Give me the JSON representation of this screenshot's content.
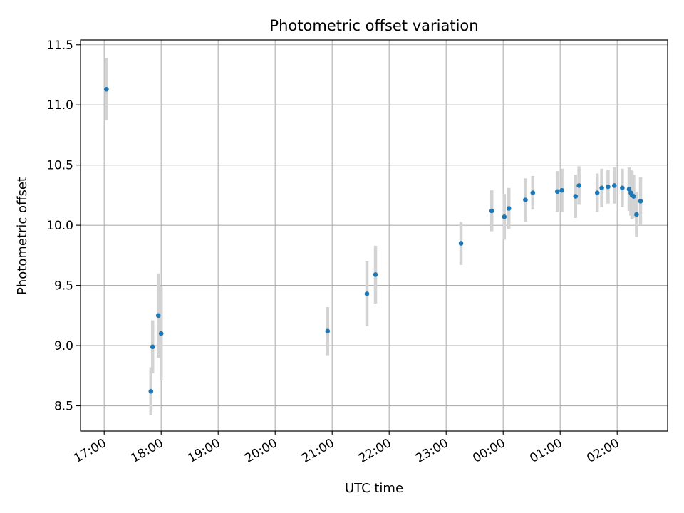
{
  "chart_data": {
    "type": "scatter",
    "title": "Photometric offset variation",
    "xlabel": "UTC time",
    "ylabel": "Photometric offset",
    "x_unit": "hours (17:00 to 02:00 next day)",
    "xlim": [
      16.585,
      26.885
    ],
    "ylim": [
      8.29,
      11.54
    ],
    "x_ticks": [
      17,
      18,
      19,
      20,
      21,
      22,
      23,
      24,
      25,
      26
    ],
    "x_tick_labels": [
      "17:00",
      "18:00",
      "19:00",
      "20:00",
      "21:00",
      "22:00",
      "23:00",
      "00:00",
      "01:00",
      "02:00"
    ],
    "y_ticks": [
      8.5,
      9.0,
      9.5,
      10.0,
      10.5,
      11.0,
      11.5
    ],
    "y_tick_labels": [
      "8.5",
      "9.0",
      "9.5",
      "10.0",
      "10.5",
      "11.0",
      "11.5"
    ],
    "grid": true,
    "marker_color": "#1f77b4",
    "errorbar_color": "#d3d3d3",
    "points": [
      {
        "x": 17.04,
        "y": 11.13,
        "err": 0.26
      },
      {
        "x": 17.82,
        "y": 8.62,
        "err": 0.2
      },
      {
        "x": 17.85,
        "y": 8.99,
        "err": 0.22
      },
      {
        "x": 17.95,
        "y": 9.25,
        "err": 0.35
      },
      {
        "x": 18.0,
        "y": 9.1,
        "err": 0.39
      },
      {
        "x": 20.92,
        "y": 9.12,
        "err": 0.2
      },
      {
        "x": 21.61,
        "y": 9.43,
        "err": 0.27
      },
      {
        "x": 21.76,
        "y": 9.59,
        "err": 0.24
      },
      {
        "x": 23.26,
        "y": 9.85,
        "err": 0.18
      },
      {
        "x": 23.8,
        "y": 10.12,
        "err": 0.17
      },
      {
        "x": 24.02,
        "y": 10.07,
        "err": 0.19
      },
      {
        "x": 24.1,
        "y": 10.14,
        "err": 0.17
      },
      {
        "x": 24.39,
        "y": 10.21,
        "err": 0.18
      },
      {
        "x": 24.52,
        "y": 10.27,
        "err": 0.14
      },
      {
        "x": 24.95,
        "y": 10.28,
        "err": 0.17
      },
      {
        "x": 25.03,
        "y": 10.29,
        "err": 0.18
      },
      {
        "x": 25.27,
        "y": 10.24,
        "err": 0.18
      },
      {
        "x": 25.33,
        "y": 10.33,
        "err": 0.16
      },
      {
        "x": 25.65,
        "y": 10.27,
        "err": 0.16
      },
      {
        "x": 25.73,
        "y": 10.31,
        "err": 0.16
      },
      {
        "x": 25.84,
        "y": 10.32,
        "err": 0.14
      },
      {
        "x": 25.95,
        "y": 10.33,
        "err": 0.15
      },
      {
        "x": 26.09,
        "y": 10.31,
        "err": 0.16
      },
      {
        "x": 26.21,
        "y": 10.3,
        "err": 0.18
      },
      {
        "x": 26.24,
        "y": 10.27,
        "err": 0.19
      },
      {
        "x": 26.26,
        "y": 10.25,
        "err": 0.2
      },
      {
        "x": 26.29,
        "y": 10.24,
        "err": 0.18
      },
      {
        "x": 26.34,
        "y": 10.09,
        "err": 0.19
      },
      {
        "x": 26.41,
        "y": 10.2,
        "err": 0.2
      }
    ]
  }
}
